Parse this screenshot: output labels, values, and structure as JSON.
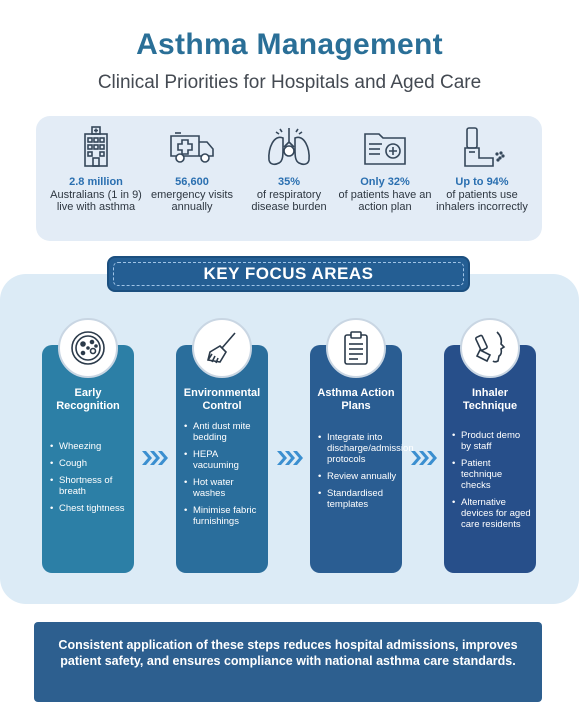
{
  "header": {
    "title": "Asthma Management",
    "subtitle": "Clinical Priorities for Hospitals and Aged Care"
  },
  "stats": [
    {
      "icon": "hospital-building-icon",
      "highlight": "2.8 million",
      "text": "Australians (1 in 9) live with asthma"
    },
    {
      "icon": "ambulance-icon",
      "highlight": "56,600",
      "text": "emergency visits annually"
    },
    {
      "icon": "lungs-icon",
      "highlight": "35%",
      "text": "of respiratory disease burden"
    },
    {
      "icon": "medical-folder-icon",
      "highlight": "Only 32%",
      "text": "of patients have an action plan"
    },
    {
      "icon": "inhaler-icon",
      "highlight": "Up to 94%",
      "text": "of patients use inhalers incorrectly"
    }
  ],
  "focus": {
    "banner": "KEY FOCUS AREAS",
    "cards": [
      {
        "icon": "microbe-petri-icon",
        "title": "Early Recognition",
        "items": [
          "Wheezing",
          "Cough",
          "Shortness of breath",
          "Chest tightness"
        ]
      },
      {
        "icon": "broom-cleaning-icon",
        "title": "Environmental Control",
        "items": [
          "Anti dust mite bedding",
          "HEPA vacuuming",
          "Hot water washes",
          "Minimise fabric furnishings"
        ]
      },
      {
        "icon": "clipboard-icon",
        "title": "Asthma Action Plans",
        "items": [
          "Integrate into discharge/admission protocols",
          "Review annually",
          "Standardised templates"
        ]
      },
      {
        "icon": "inhaler-face-icon",
        "title": "Inhaler Technique",
        "items": [
          "Product demo by staff",
          "Patient technique checks",
          "Alternative devices for aged care residents"
        ]
      }
    ]
  },
  "footer": {
    "text": "Consistent application of these steps reduces hospital admissions, improves patient safety, and ensures compliance with national asthma care standards."
  },
  "colors": {
    "title": "#2a6f97",
    "stat_highlight": "#2a6fb0",
    "card_1": "#2c7fa6",
    "card_2": "#2a6e9c",
    "card_3": "#2a5d92",
    "card_4": "#274f8a",
    "footer": "#2d5f8f"
  }
}
